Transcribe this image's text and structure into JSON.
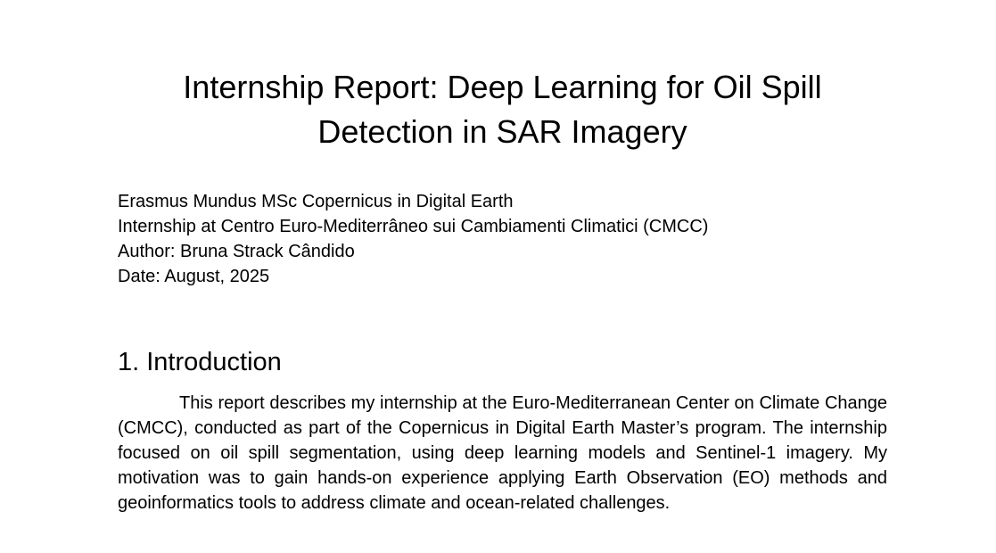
{
  "document": {
    "title_lines": [
      "Internship Report: Deep Learning for Oil Spill",
      "Detection in SAR Imagery"
    ],
    "meta_lines": [
      "Erasmus Mundus MSc Copernicus in Digital Earth",
      "Internship at Centro Euro-Mediterrâneo sui Cambiamenti Climatici (CMCC)",
      "Author: Bruna Strack Cândido",
      "Date: August, 2025"
    ],
    "section": {
      "heading": "1. Introduction",
      "paragraph": "This report describes my internship at the Euro-Mediterranean Center on Climate Change (CMCC), conducted as part of the Copernicus in Digital Earth Master’s program. The internship focused on oil spill segmentation, using deep learning models and Sentinel-1 imagery. My motivation was to gain hands-on experience applying Earth Observation (EO) methods and geoinformatics tools to address climate and ocean-related challenges."
    }
  }
}
